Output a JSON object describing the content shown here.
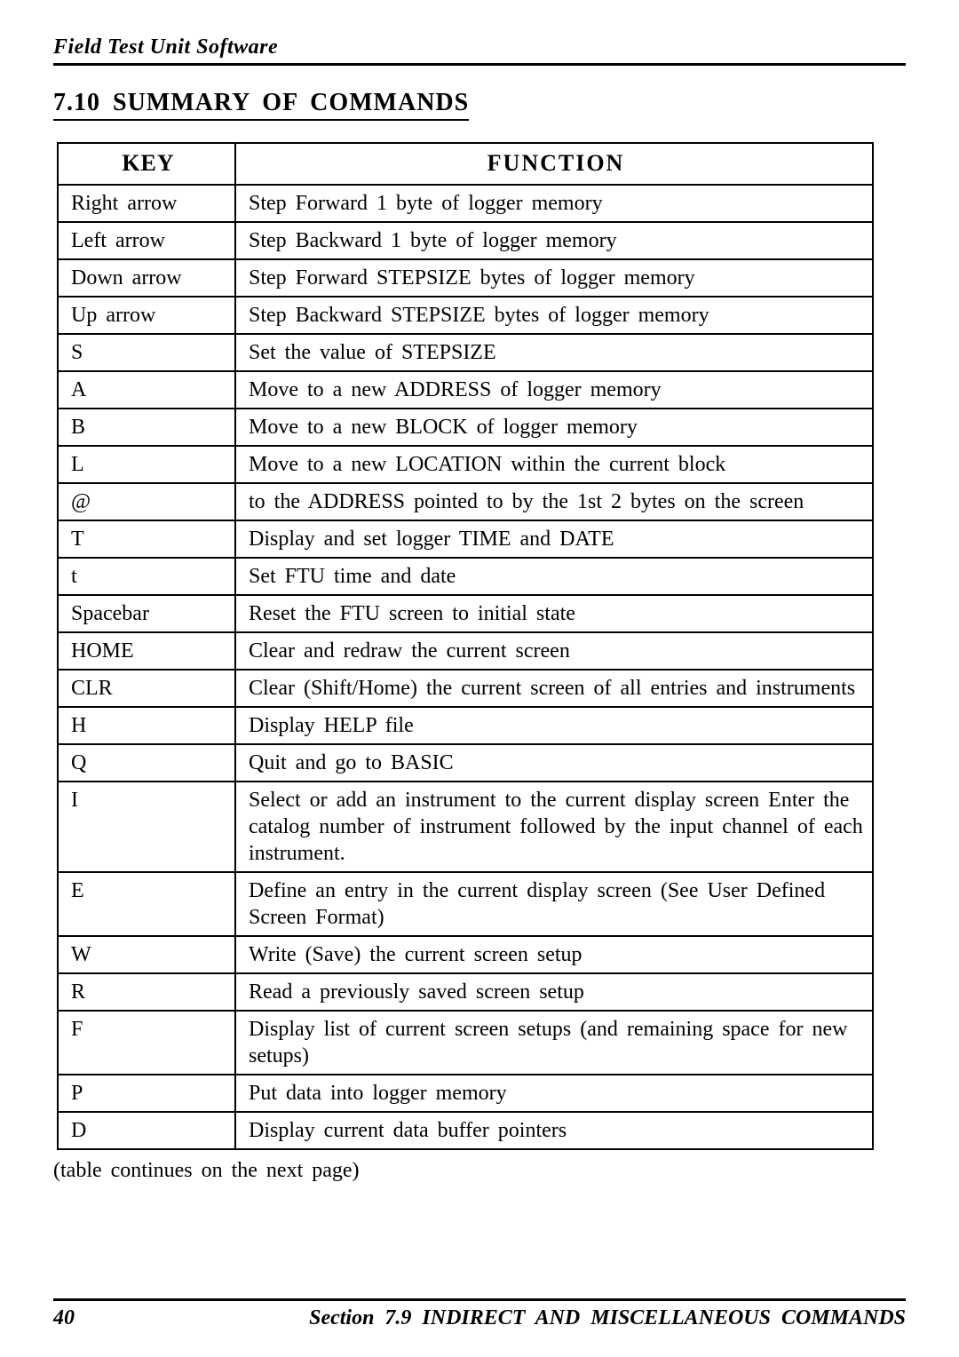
{
  "runningHead": "Field  Test  Unit  Software",
  "sectionTitle": "7.10  SUMMARY  OF  COMMANDS",
  "table": {
    "headers": {
      "key": "KEY",
      "function": "FUNCTION"
    },
    "rows": [
      {
        "key": "Right arrow",
        "func": "Step Forward 1 byte of logger memory"
      },
      {
        "key": "Left  arrow",
        "func": "Step Backward 1 byte of logger memory"
      },
      {
        "key": "Down arrow",
        "func": "Step Forward STEPSIZE  bytes of logger memory"
      },
      {
        "key": "Up arrow",
        "func": "Step Backward STEPSIZE  bytes of logger memory"
      },
      {
        "key": "S",
        "func": "Set the value of STEPSIZE"
      },
      {
        "key": "A",
        "func": "Move to a new ADDRESS of logger memory"
      },
      {
        "key": "B",
        "func": "Move to a new BLOCK of logger  memory"
      },
      {
        "key": "L",
        "func": "Move to a new LOCATION within the current block"
      },
      {
        "key": "@",
        "func": "to the ADDRESS pointed to by the 1st 2 bytes on the screen"
      },
      {
        "key": "T",
        "func": "Display and set logger TIME and DATE"
      },
      {
        "key": "t",
        "func": "Set FTU time and date"
      },
      {
        "key": "Spacebar",
        "func": "Reset the FTU  screen to initial state"
      },
      {
        "key": "HOME",
        "func": "Clear and redraw the current screen"
      },
      {
        "key": "CLR",
        "func": "Clear (Shift/Home) the current screen of all entries and instruments"
      },
      {
        "key": "H",
        "func": "Display HELP file"
      },
      {
        "key": "Q",
        "func": "Quit and go to BASIC"
      },
      {
        "key": "I",
        "func": "Select or add an instrument to the current display screen Enter the catalog number of instrument followed by the input channel of each instrument."
      },
      {
        "key": "E",
        "func": "Define an entry in the current display screen (See User Defined Screen Format)"
      },
      {
        "key": "W",
        "func": "Write (Save) the current screen  setup"
      },
      {
        "key": "R",
        "func": "Read a previously saved screen setup"
      },
      {
        "key": "F",
        "func": "Display list of current screen setups (and remaining space for new setups)"
      },
      {
        "key": "P",
        "func": "Put data into logger memory"
      },
      {
        "key": "D",
        "func": "Display current data buffer  pointers"
      }
    ]
  },
  "note": "(table  continues  on  the  next  page)",
  "footer": {
    "page": "40",
    "title": "Section 7.9 INDIRECT AND  MISCELLANEOUS  COMMANDS"
  }
}
